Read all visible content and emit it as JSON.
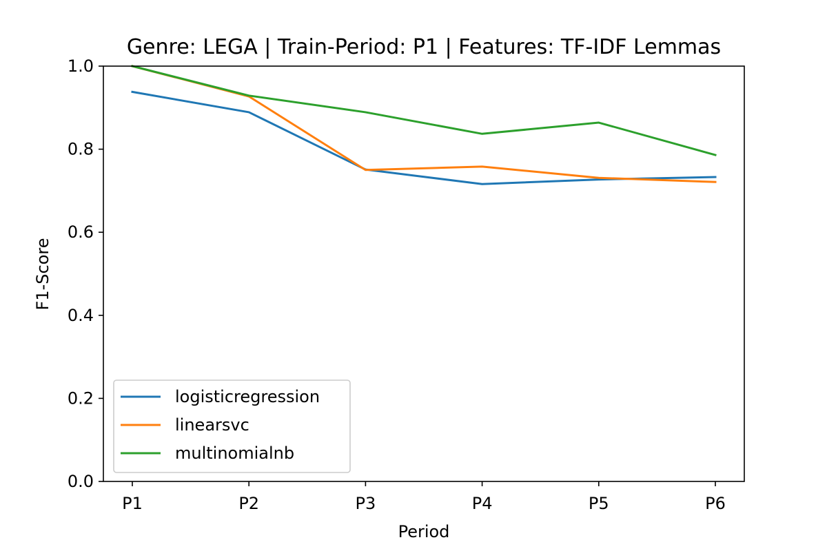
{
  "chart_data": {
    "type": "line",
    "title": "Genre: LEGA | Train-Period: P1 | Features: TF-IDF Lemmas",
    "xlabel": "Period",
    "ylabel": "F1-Score",
    "categories": [
      "P1",
      "P2",
      "P3",
      "P4",
      "P5",
      "P6"
    ],
    "ylim": [
      0.0,
      1.0
    ],
    "yticks": [
      "0.0",
      "0.2",
      "0.4",
      "0.6",
      "0.8",
      "1.0"
    ],
    "grid": false,
    "legend_position": "lower-left",
    "series": [
      {
        "name": "logisticregression",
        "color": "#1f77b4",
        "values": [
          0.938,
          0.889,
          0.751,
          0.716,
          0.727,
          0.733
        ]
      },
      {
        "name": "linearsvc",
        "color": "#ff7f0e",
        "values": [
          1.0,
          0.927,
          0.75,
          0.758,
          0.731,
          0.721
        ]
      },
      {
        "name": "multinomialnb",
        "color": "#2ca02c",
        "values": [
          1.0,
          0.929,
          0.889,
          0.837,
          0.864,
          0.786
        ]
      }
    ]
  }
}
